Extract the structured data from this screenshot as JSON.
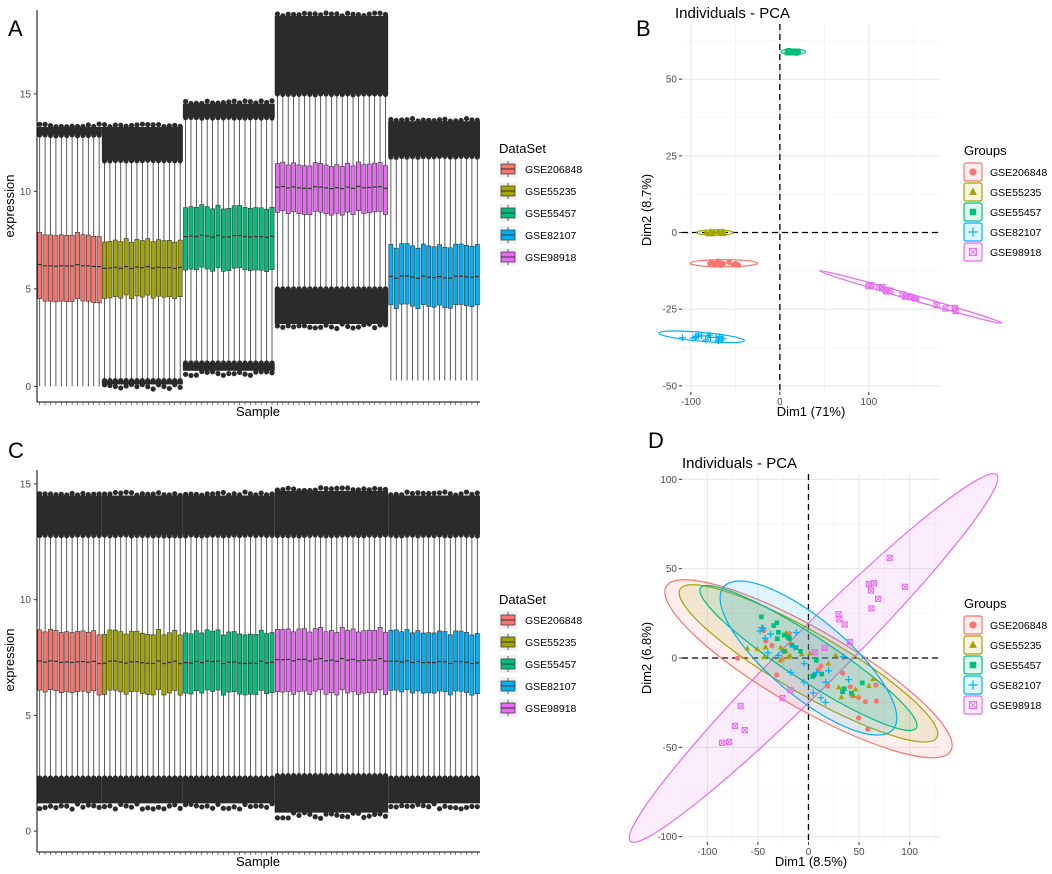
{
  "colors": {
    "GSE206848": "#F8766D",
    "GSE55235": "#A3A500",
    "GSE55457": "#00BF7D",
    "GSE82107": "#00B0F6",
    "GSE98918": "#E76BF3"
  },
  "chart_data": [
    {
      "panel": "A",
      "type": "boxplot",
      "title": "",
      "xlabel": "Sample",
      "ylabel": "expression",
      "ylim": [
        -0.8,
        19.3
      ],
      "yticks": [
        0,
        5,
        10,
        15
      ],
      "legend_title": "DataSet",
      "legend_position": "right",
      "groups": [
        {
          "name": "GSE206848",
          "n_samples": 12,
          "q1": 4.4,
          "median": 6.2,
          "q3": 7.8,
          "whisker_low": 0.0,
          "whisker_high": 12.9,
          "outlier_high": [
            12.9,
            13.3
          ],
          "outlier_low": []
        },
        {
          "name": "GSE55235",
          "n_samples": 15,
          "q1": 4.6,
          "median": 6.1,
          "q3": 7.5,
          "whisker_low": 0.3,
          "whisker_high": 11.6,
          "outlier_high": [
            11.6,
            13.3
          ],
          "outlier_low": [
            0.1,
            0.3
          ]
        },
        {
          "name": "GSE55457",
          "n_samples": 17,
          "q1": 6.0,
          "median": 7.7,
          "q3": 9.2,
          "whisker_low": 1.2,
          "whisker_high": 13.8,
          "outlier_high": [
            13.8,
            14.5
          ],
          "outlier_low": [
            0.8,
            1.2
          ]
        },
        {
          "name": "GSE98918",
          "n_samples": 21,
          "q1": 8.9,
          "median": 10.2,
          "q3": 11.4,
          "whisker_low": 5.0,
          "whisker_high": 15.0,
          "outlier_high": [
            15.0,
            19.0
          ],
          "outlier_low": [
            3.2,
            5.0
          ]
        },
        {
          "name": "GSE82107",
          "n_samples": 17,
          "q1": 4.1,
          "median": 5.6,
          "q3": 7.2,
          "whisker_low": 0.3,
          "whisker_high": 11.8,
          "outlier_high": [
            11.8,
            13.6
          ],
          "outlier_low": []
        }
      ]
    },
    {
      "panel": "B",
      "type": "scatter",
      "title": "Individuals - PCA",
      "xlabel": "Dim1 (71%)",
      "ylabel": "Dim2 (8.7%)",
      "xlim": [
        -110,
        180
      ],
      "ylim": [
        -52,
        68
      ],
      "xticks": [
        -100,
        0,
        100
      ],
      "yticks": [
        -50,
        -25,
        0,
        25,
        50
      ],
      "legend_title": "Groups",
      "legend_position": "right",
      "ellipse_style": "outline",
      "series": [
        {
          "name": "GSE206848",
          "shape": "circle",
          "cx": -63,
          "cy": -10,
          "rx": 4,
          "ry": 11,
          "angle": -90
        },
        {
          "name": "GSE55235",
          "shape": "triangle",
          "cx": -73,
          "cy": 0,
          "rx": 3,
          "ry": 6,
          "angle": -90
        },
        {
          "name": "GSE55457",
          "shape": "square",
          "cx": 15,
          "cy": 59,
          "rx": 3,
          "ry": 4,
          "angle": -90
        },
        {
          "name": "GSE82107",
          "shape": "plus",
          "cx": -88,
          "cy": -34,
          "rx": 5,
          "ry": 14,
          "angle": -85
        },
        {
          "name": "GSE98918",
          "shape": "boxcross",
          "cx": 147,
          "cy": -21,
          "rx": 3,
          "ry": 31,
          "angle": -74
        }
      ]
    },
    {
      "panel": "C",
      "type": "boxplot",
      "title": "",
      "xlabel": "Sample",
      "ylabel": "expression",
      "ylim": [
        -0.9,
        15.6
      ],
      "yticks": [
        0,
        5,
        10,
        15
      ],
      "legend_title": "DataSet",
      "legend_position": "right",
      "groups": [
        {
          "name": "GSE206848",
          "n_samples": 12,
          "q1": 6.0,
          "median": 7.3,
          "q3": 8.6,
          "whisker_low": 2.3,
          "whisker_high": 12.8,
          "outlier_high": [
            12.8,
            14.5
          ],
          "outlier_low": [
            1.2,
            2.3
          ]
        },
        {
          "name": "GSE55235",
          "n_samples": 15,
          "q1": 6.0,
          "median": 7.3,
          "q3": 8.6,
          "whisker_low": 2.3,
          "whisker_high": 12.8,
          "outlier_high": [
            12.8,
            14.5
          ],
          "outlier_low": [
            1.2,
            2.3
          ]
        },
        {
          "name": "GSE55457",
          "n_samples": 17,
          "q1": 6.0,
          "median": 7.3,
          "q3": 8.6,
          "whisker_low": 2.3,
          "whisker_high": 12.8,
          "outlier_high": [
            12.8,
            14.5
          ],
          "outlier_low": [
            1.2,
            2.3
          ]
        },
        {
          "name": "GSE98918",
          "n_samples": 21,
          "q1": 6.0,
          "median": 7.4,
          "q3": 8.7,
          "whisker_low": 2.4,
          "whisker_high": 12.8,
          "outlier_high": [
            12.8,
            14.7
          ],
          "outlier_low": [
            0.8,
            2.4
          ]
        },
        {
          "name": "GSE82107",
          "n_samples": 17,
          "q1": 6.0,
          "median": 7.3,
          "q3": 8.6,
          "whisker_low": 2.3,
          "whisker_high": 12.8,
          "outlier_high": [
            12.8,
            14.5
          ],
          "outlier_low": [
            1.2,
            2.3
          ]
        }
      ]
    },
    {
      "panel": "D",
      "type": "scatter",
      "title": "Individuals - PCA",
      "xlabel": "Dim1 (8.5%)",
      "ylabel": "Dim2 (6.8%)",
      "xlim": [
        -125,
        130
      ],
      "ylim": [
        -103,
        103
      ],
      "xticks": [
        -100,
        -50,
        0,
        50,
        100
      ],
      "yticks": [
        -100,
        -50,
        0,
        50,
        100
      ],
      "legend_title": "Groups",
      "legend_position": "right",
      "ellipse_style": "filled",
      "series": [
        {
          "name": "GSE206848",
          "shape": "circle",
          "cx": 0,
          "cy": -6,
          "rx": 39,
          "ry": 92,
          "angle": -60
        },
        {
          "name": "GSE55235",
          "shape": "triangle",
          "cx": 0,
          "cy": -3,
          "rx": 30,
          "ry": 83,
          "angle": -60
        },
        {
          "name": "GSE55457",
          "shape": "square",
          "cx": 0,
          "cy": 0,
          "rx": 22,
          "ry": 72,
          "angle": -57
        },
        {
          "name": "GSE82107",
          "shape": "plus",
          "cx": 0,
          "cy": 0,
          "rx": 38,
          "ry": 62,
          "angle": -50
        },
        {
          "name": "GSE98918",
          "shape": "boxcross",
          "cx": 5,
          "cy": 0,
          "rx": 28,
          "ry": 145,
          "angle": -135
        }
      ]
    }
  ]
}
